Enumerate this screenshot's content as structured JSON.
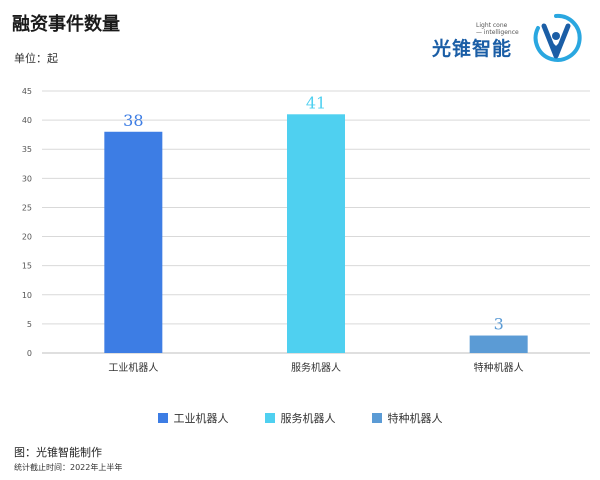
{
  "header": {
    "title": "融资事件数量",
    "unit": "单位：起"
  },
  "logo": {
    "name": "光锥智能",
    "tagline_line1": "Light cone",
    "tagline_line2": "— intelligence"
  },
  "footer": {
    "source": "图：光锥智能制作",
    "note": "统计截止时间：2022年上半年"
  },
  "colors": {
    "industrial": "#3d7de4",
    "service": "#4fd0f0",
    "special": "#5b9bd5",
    "grid": "#d9d9d9",
    "brand": "#1b5ea6"
  },
  "chart_data": {
    "type": "bar",
    "categories": [
      "工业机器人",
      "服务机器人",
      "特种机器人"
    ],
    "values": [
      38,
      41,
      3
    ],
    "series_colors": [
      "#3d7de4",
      "#4fd0f0",
      "#5b9bd5"
    ],
    "ylim": [
      0,
      45
    ],
    "yticks": [
      0,
      5,
      10,
      15,
      20,
      25,
      30,
      35,
      40,
      45
    ],
    "grid": true,
    "legend": [
      "工业机器人",
      "服务机器人",
      "特种机器人"
    ],
    "legend_position": "bottom"
  }
}
